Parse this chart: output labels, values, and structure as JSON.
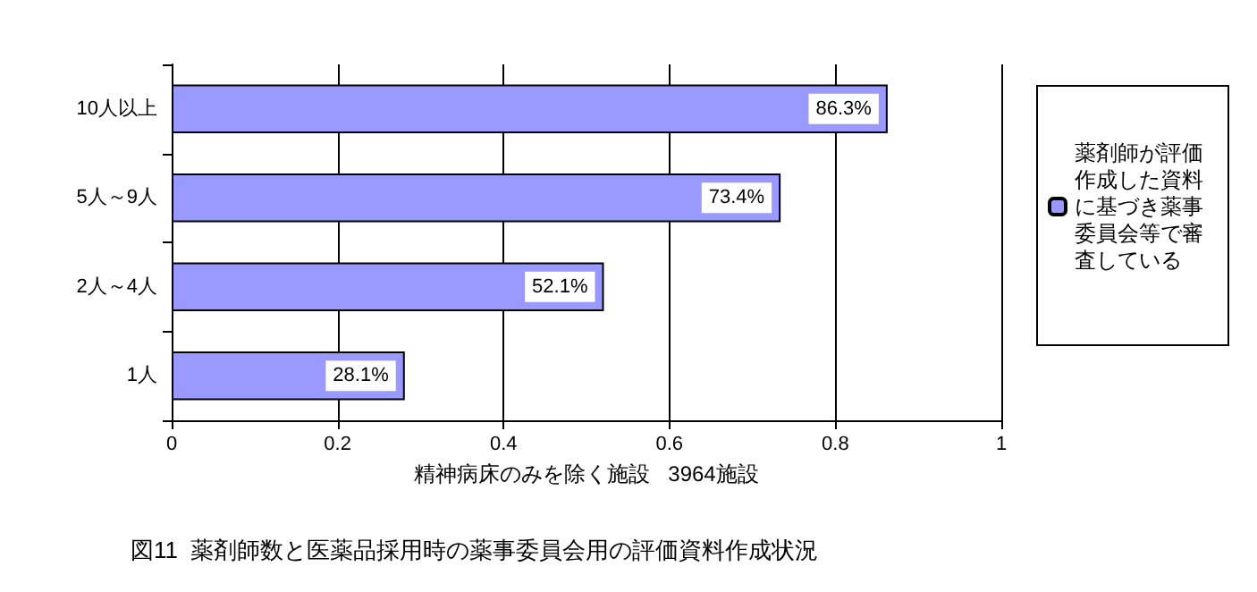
{
  "chart_data": {
    "type": "bar",
    "orientation": "horizontal",
    "title": "図11  薬剤師数と医薬品採用時の薬事委員会用の評価資料作成状況",
    "xlabel": "精神病床のみを除く施設   3964施設",
    "categories": [
      "10人以上",
      "5人～9人",
      "2人～4人",
      "1人"
    ],
    "series": [
      {
        "name": "薬剤師が評価作成した資料に基づき薬事委員会等で審査している",
        "color": "#9999ff",
        "values": [
          0.863,
          0.734,
          0.521,
          0.281
        ],
        "value_labels": [
          "86.3%",
          "73.4%",
          "52.1%",
          "28.1%"
        ]
      }
    ],
    "xlim": [
      0,
      1
    ],
    "xticks": [
      0,
      0.2,
      0.4,
      0.6,
      0.8,
      1
    ],
    "grid": "x",
    "legend": "right"
  }
}
